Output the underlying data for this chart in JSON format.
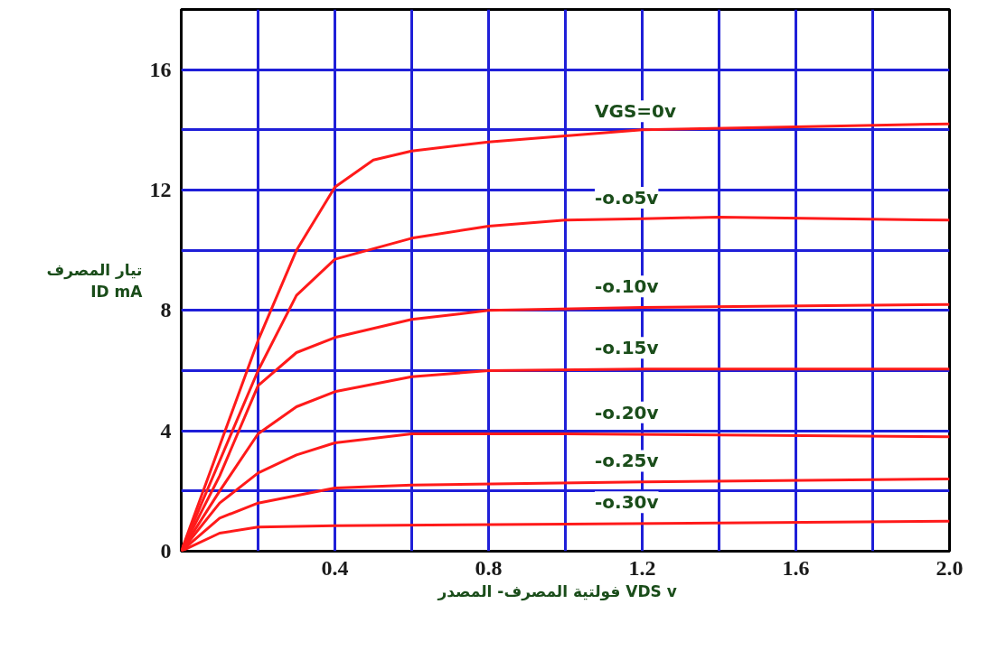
{
  "chart_data": {
    "type": "line",
    "xlabel": "فولتية المصرف- المصدر    VDS v",
    "ylabel": "تيار المصرف\nID mA",
    "xlim": [
      0,
      2.0
    ],
    "ylim": [
      0,
      18
    ],
    "xticks": [
      {
        "value": 0.2,
        "label": null
      },
      0.4,
      {
        "value": 0.6,
        "label": null
      },
      0.8,
      {
        "value": 1.0,
        "label": null
      },
      1.2,
      {
        "value": 1.4,
        "label": null
      },
      1.6,
      {
        "value": 1.8,
        "label": null
      },
      {
        "value": 2.0,
        "label": "2.0"
      }
    ],
    "yticks": [
      0,
      {
        "value": 2,
        "label": null
      },
      4,
      {
        "value": 6,
        "label": null
      },
      8,
      {
        "value": 10,
        "label": null
      },
      12,
      {
        "value": 14,
        "label": null
      },
      16
    ],
    "grid": true,
    "marker": "none",
    "line_style": "solid",
    "series": [
      {
        "name": "VGS=0v",
        "color": "#ff1a1a",
        "x": [
          0,
          0.1,
          0.2,
          0.3,
          0.4,
          0.5,
          0.6,
          0.8,
          1.0,
          1.2,
          1.6,
          2.0
        ],
        "values": [
          0,
          3.5,
          7,
          10,
          12.1,
          13,
          13.3,
          13.6,
          13.8,
          14,
          14.1,
          14.2
        ]
      },
      {
        "name": "-o.o5v",
        "color": "#ff1a1a",
        "x": [
          0,
          0.1,
          0.2,
          0.3,
          0.4,
          0.6,
          0.8,
          1.0,
          1.2,
          1.4,
          2.0
        ],
        "values": [
          0,
          3,
          6,
          8.5,
          9.7,
          10.4,
          10.8,
          11.0,
          11.05,
          11.1,
          11.0
        ]
      },
      {
        "name": "-o.10v",
        "color": "#ff1a1a",
        "x": [
          0,
          0.1,
          0.2,
          0.3,
          0.4,
          0.6,
          0.8,
          1.2,
          2.0
        ],
        "values": [
          0,
          2.5,
          5.5,
          6.6,
          7.1,
          7.7,
          8.0,
          8.1,
          8.2
        ]
      },
      {
        "name": "-o.15v",
        "color": "#ff1a1a",
        "x": [
          0,
          0.1,
          0.2,
          0.3,
          0.4,
          0.6,
          0.8,
          1.2,
          2.0
        ],
        "values": [
          0,
          2,
          3.9,
          4.8,
          5.3,
          5.8,
          6.0,
          6.05,
          6.05
        ]
      },
      {
        "name": "-o.20v",
        "color": "#ff1a1a",
        "x": [
          0,
          0.1,
          0.2,
          0.3,
          0.4,
          0.6,
          1.0,
          2.0
        ],
        "values": [
          0,
          1.6,
          2.6,
          3.2,
          3.6,
          3.9,
          3.9,
          3.8
        ]
      },
      {
        "name": "-o.25v",
        "color": "#ff1a1a",
        "x": [
          0,
          0.1,
          0.2,
          0.4,
          0.6,
          1.2,
          2.0
        ],
        "values": [
          0,
          1.1,
          1.6,
          2.1,
          2.2,
          2.3,
          2.4
        ]
      },
      {
        "name": "-o.30v",
        "color": "#ff1a1a",
        "x": [
          0,
          0.1,
          0.2,
          0.4,
          1.0,
          2.0
        ],
        "values": [
          0,
          0.6,
          0.8,
          0.85,
          0.9,
          1.0
        ]
      }
    ]
  }
}
